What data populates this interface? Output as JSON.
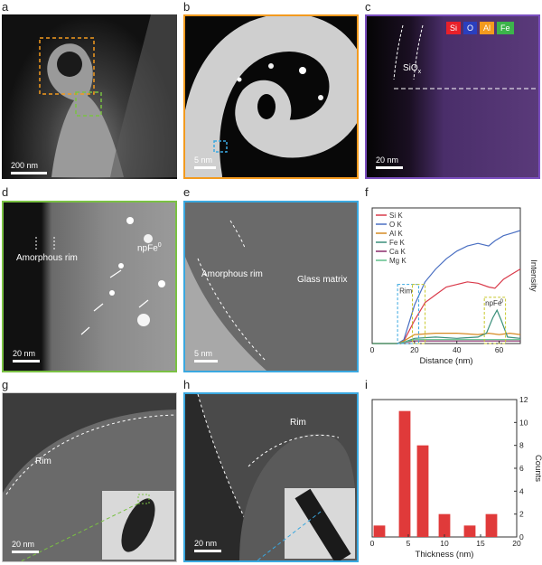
{
  "panel_labels": {
    "a": "a",
    "b": "b",
    "c": "c",
    "d": "d",
    "e": "e",
    "f": "f",
    "g": "g",
    "h": "h",
    "i": "i"
  },
  "panel_a": {
    "scale": "200 nm"
  },
  "panel_b": {
    "scale": "5 nm"
  },
  "panel_c": {
    "scale": "20 nm",
    "oxide_label": "SiO",
    "oxide_sub": "x",
    "elements": [
      {
        "name": "Si",
        "color": "#e8202a"
      },
      {
        "name": "O",
        "color": "#2a3fbf"
      },
      {
        "name": "Al",
        "color": "#f39a1e"
      },
      {
        "name": "Fe",
        "color": "#3cb44b"
      }
    ]
  },
  "panel_d": {
    "scale": "20 nm",
    "rim_label": "Amorphous rim",
    "np_label": "npFe",
    "np_sup": "0"
  },
  "panel_e": {
    "scale": "5 nm",
    "rim_label": "Amorphous rim",
    "matrix_label": "Glass matrix"
  },
  "panel_g": {
    "scale": "20 nm",
    "rim_label": "Rim"
  },
  "panel_h": {
    "scale": "20 nm",
    "rim_label_left": "Rim",
    "rim_label_right": "Rim"
  },
  "chart_f": {
    "type": "line",
    "xlabel": "Distance (nm)",
    "ylabel": "Intensity",
    "xlim": [
      0,
      70
    ],
    "xticks": [
      "0",
      "20",
      "40",
      "60"
    ],
    "annotations": {
      "rim": "Rim",
      "np": "npFe",
      "np_sup": "0"
    },
    "series": [
      {
        "name": "Si K",
        "color": "#d93a4a",
        "x": [
          0,
          12,
          15,
          20,
          25,
          30,
          35,
          40,
          45,
          50,
          55,
          58,
          62,
          66,
          70
        ],
        "y": [
          0,
          0,
          0.02,
          0.18,
          0.32,
          0.38,
          0.44,
          0.46,
          0.48,
          0.47,
          0.44,
          0.43,
          0.5,
          0.54,
          0.58
        ]
      },
      {
        "name": "O K",
        "color": "#4a6fc2",
        "x": [
          0,
          12,
          15,
          20,
          25,
          30,
          35,
          40,
          45,
          50,
          55,
          58,
          62,
          66,
          70
        ],
        "y": [
          0,
          0,
          0.03,
          0.3,
          0.48,
          0.58,
          0.66,
          0.72,
          0.76,
          0.78,
          0.76,
          0.8,
          0.84,
          0.86,
          0.88
        ]
      },
      {
        "name": "Al K",
        "color": "#d68a22",
        "x": [
          0,
          12,
          15,
          20,
          30,
          40,
          50,
          55,
          60,
          65,
          70
        ],
        "y": [
          0,
          0,
          0.02,
          0.07,
          0.08,
          0.08,
          0.07,
          0.08,
          0.07,
          0.08,
          0.07
        ]
      },
      {
        "name": "Fe K",
        "color": "#3a8f7a",
        "x": [
          0,
          12,
          15,
          20,
          30,
          40,
          50,
          54,
          57,
          59,
          61,
          64,
          70
        ],
        "y": [
          0,
          0,
          0.01,
          0.04,
          0.05,
          0.04,
          0.05,
          0.08,
          0.2,
          0.26,
          0.18,
          0.05,
          0.04
        ]
      },
      {
        "name": "Ca K",
        "color": "#8a2a6a",
        "x": [
          0,
          12,
          15,
          20,
          30,
          40,
          50,
          60,
          70
        ],
        "y": [
          0,
          0,
          0.01,
          0.02,
          0.02,
          0.02,
          0.02,
          0.02,
          0.02
        ]
      },
      {
        "name": "Mg K",
        "color": "#5fbf8a",
        "x": [
          0,
          12,
          15,
          20,
          30,
          40,
          50,
          60,
          70
        ],
        "y": [
          0,
          0,
          0.01,
          0.03,
          0.03,
          0.03,
          0.03,
          0.03,
          0.03
        ]
      }
    ]
  },
  "chart_i": {
    "type": "bar",
    "xlabel": "Thickness (nm)",
    "ylabel": "Counts",
    "xlim": [
      0,
      20
    ],
    "ylim": [
      0,
      12
    ],
    "xticks": [
      "0",
      "5",
      "10",
      "15",
      "20"
    ],
    "yticks": [
      "0",
      "2",
      "4",
      "6",
      "8",
      "10",
      "12"
    ],
    "bars": [
      {
        "x": 1,
        "value": 1
      },
      {
        "x": 4.5,
        "value": 11
      },
      {
        "x": 7,
        "value": 8
      },
      {
        "x": 10,
        "value": 2
      },
      {
        "x": 13.5,
        "value": 1
      },
      {
        "x": 16.5,
        "value": 2
      }
    ],
    "bar_color": "#e03a3a"
  }
}
